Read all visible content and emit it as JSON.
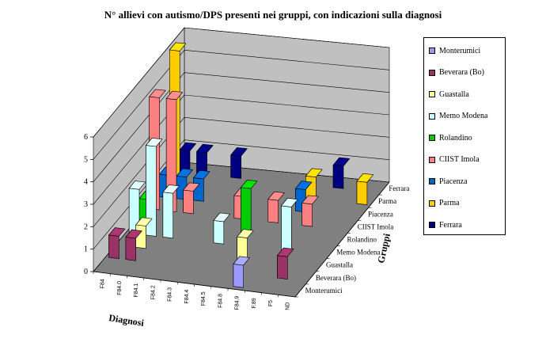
{
  "chart_data": {
    "type": "bar3d",
    "title": "N° allievi con autismo/DPS presenti nei gruppi, con indicazioni sulla diagnosi",
    "xlabel": "Diagnosi",
    "zlabel": "Gruppi",
    "ylim": [
      0,
      6
    ],
    "yticks": [
      "0",
      "1",
      "2",
      "3",
      "4",
      "5",
      "6"
    ],
    "categories": [
      "F84",
      "F84.0",
      "F84.1",
      "F84.2",
      "F84.3",
      "F84.4",
      "F84.5",
      "F84.8",
      "F84.9",
      "F.89",
      "F5",
      "ND"
    ],
    "series": [
      {
        "name": "Monterumici",
        "color": "#9999ff",
        "values": [
          0,
          0,
          0,
          0,
          0,
          0,
          0,
          0,
          1,
          0,
          0,
          0
        ]
      },
      {
        "name": "Beverara (Bo)",
        "color": "#993366",
        "values": [
          1,
          1,
          0,
          0,
          0,
          0,
          0,
          0,
          0,
          0,
          1,
          0
        ]
      },
      {
        "name": "Guastalla",
        "color": "#ffff99",
        "values": [
          0,
          1,
          0,
          0,
          0,
          0,
          0,
          1,
          0,
          0,
          0,
          0
        ]
      },
      {
        "name": "Memo Modena",
        "color": "#ccffff",
        "values": [
          2,
          4,
          2,
          0,
          0,
          1,
          0,
          0,
          0,
          2,
          0,
          0
        ]
      },
      {
        "name": "Rolandino",
        "color": "#00cc00",
        "values": [
          1,
          0,
          0,
          0,
          0,
          0,
          2,
          0,
          0,
          0,
          0,
          0
        ]
      },
      {
        "name": "CIIST Imola",
        "color": "#ff8080",
        "values": [
          5,
          5,
          1,
          0,
          0,
          1,
          0,
          1,
          0,
          1,
          0,
          0
        ]
      },
      {
        "name": "Piacenza",
        "color": "#0066cc",
        "values": [
          1,
          1,
          1,
          0,
          0,
          0,
          0,
          0,
          1,
          0,
          0,
          0
        ]
      },
      {
        "name": "Parma",
        "color": "#ffcc00",
        "values": [
          6,
          0,
          0,
          0,
          0,
          0,
          0,
          0,
          1,
          0,
          0,
          1
        ]
      },
      {
        "name": "Ferrara",
        "color": "#000080",
        "values": [
          1,
          1,
          0,
          1,
          0,
          0,
          0,
          0,
          0,
          1,
          0,
          0
        ]
      }
    ]
  }
}
